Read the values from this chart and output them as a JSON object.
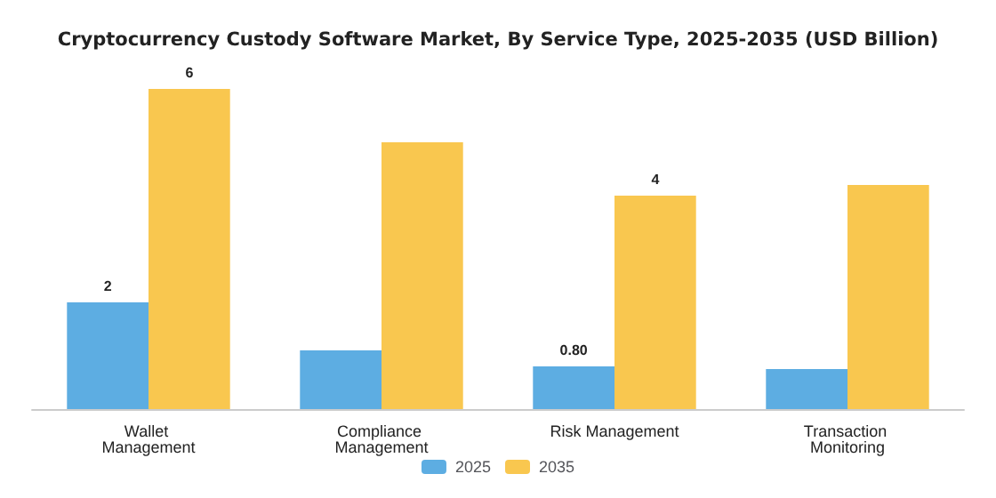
{
  "chart_data": {
    "type": "bar",
    "title": "Cryptocurrency Custody Software Market, By Service Type, 2025-2035 (USD Billion)",
    "categories": [
      "Wallet Management",
      "Compliance Management",
      "Risk Management",
      "Transaction Monitoring"
    ],
    "series": [
      {
        "name": "2025",
        "color": "#5dade2",
        "values": [
          2,
          1.1,
          0.8,
          0.75
        ],
        "value_labels": [
          "2",
          null,
          "0.80",
          null
        ]
      },
      {
        "name": "2035",
        "color": "#f9c74f",
        "values": [
          6,
          5.0,
          4,
          4.2
        ],
        "value_labels": [
          "6",
          null,
          "4",
          null
        ]
      }
    ],
    "legend": "bottom"
  }
}
